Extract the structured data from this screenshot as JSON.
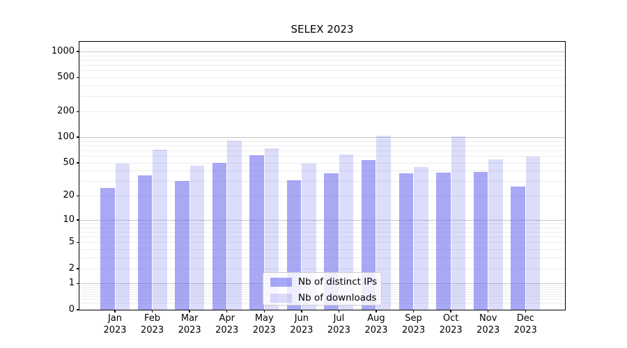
{
  "chart_data": {
    "type": "bar",
    "title": "SELEX 2023",
    "categories": [
      "Jan",
      "Feb",
      "Mar",
      "Apr",
      "May",
      "Jun",
      "Jul",
      "Aug",
      "Sep",
      "Oct",
      "Nov",
      "Dec"
    ],
    "category_year": "2023",
    "y_ticks": [
      1000,
      500,
      200,
      100,
      50,
      20,
      10,
      5,
      2,
      1,
      0
    ],
    "ylim": [
      0,
      1000
    ],
    "y_scale": "log-like (position proportional to log10(value+1))",
    "grid": true,
    "xlabel": "",
    "ylabel": "",
    "legend_position": "lower center",
    "series": [
      {
        "name": "Nb of distinct IPs",
        "color": "#6666ee",
        "opacity": 0.57,
        "rendered_color": "#a8a8f6",
        "values": [
          25,
          35,
          30,
          50,
          61,
          31,
          37,
          54,
          37,
          38,
          39,
          26
        ]
      },
      {
        "name": "Nb of downloads",
        "color": "#6666ee",
        "opacity": 0.23,
        "rendered_color": "#dcdcf8",
        "values": [
          49,
          71,
          46,
          91,
          74,
          49,
          62,
          104,
          44,
          101,
          55,
          59
        ]
      }
    ]
  }
}
